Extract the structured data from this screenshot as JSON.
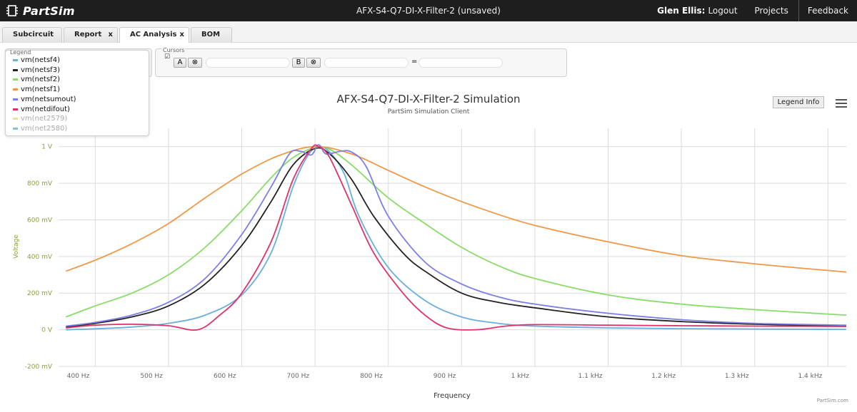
{
  "app": {
    "name": "PartSim",
    "doc_title": "AFX-S4-Q7-DI-X-Filter-2 (unsaved)"
  },
  "header": {
    "user": "Glen Ellis:",
    "logout": "Logout",
    "projects": "Projects",
    "feedback": "Feedback"
  },
  "tabs": [
    {
      "label": "Subcircuit",
      "closable": false,
      "active": false
    },
    {
      "label": "Report",
      "closable": true,
      "active": false
    },
    {
      "label": "AC Analysis",
      "closable": true,
      "active": true
    },
    {
      "label": "BOM",
      "closable": false,
      "active": false
    }
  ],
  "close_glyph": "x",
  "legend_panel": {
    "title": "Legend"
  },
  "cursors": {
    "title": "Cursors",
    "cursor_a": "A",
    "cursor_b": "B",
    "equals": "=",
    "clear_glyph": "⊗",
    "a_value": "",
    "b_value": "",
    "diff_value": ""
  },
  "chart_controls": {
    "legend_info": "Legend Info",
    "menu_icon": "hamburger-icon"
  },
  "credit": "PartSim.com",
  "chart_data": {
    "type": "line",
    "title": "AFX-S4-Q7-DI-X-Filter-2 Simulation",
    "subtitle": "PartSim Simulation Client",
    "xlabel": "Frequency",
    "ylabel": "Voltage",
    "xlim": [
      350,
      1425
    ],
    "ylim": [
      -200,
      1100
    ],
    "x_ticks": [
      {
        "value": 400,
        "label": "400 Hz"
      },
      {
        "value": 500,
        "label": "500 Hz"
      },
      {
        "value": 600,
        "label": "600 Hz"
      },
      {
        "value": 700,
        "label": "700 Hz"
      },
      {
        "value": 800,
        "label": "800 Hz"
      },
      {
        "value": 900,
        "label": "900 Hz"
      },
      {
        "value": 1000,
        "label": "1 kHz"
      },
      {
        "value": 1100,
        "label": "1.1 kHz"
      },
      {
        "value": 1200,
        "label": "1.2 kHz"
      },
      {
        "value": 1300,
        "label": "1.3 kHz"
      },
      {
        "value": 1400,
        "label": "1.4 kHz"
      }
    ],
    "y_ticks": [
      {
        "value": -200,
        "label": "-200 mV"
      },
      {
        "value": 0,
        "label": "0 V"
      },
      {
        "value": 200,
        "label": "200 mV"
      },
      {
        "value": 400,
        "label": "400 mV"
      },
      {
        "value": 600,
        "label": "600 mV"
      },
      {
        "value": 800,
        "label": "800 mV"
      },
      {
        "value": 1000,
        "label": "1 V"
      }
    ],
    "grid": true,
    "legend_placement": "top-left",
    "series": [
      {
        "name": "vm(netsf4)",
        "color": "#6aaee0",
        "points": [
          [
            360,
            0
          ],
          [
            400,
            5
          ],
          [
            450,
            15
          ],
          [
            500,
            35
          ],
          [
            550,
            80
          ],
          [
            600,
            190
          ],
          [
            640,
            420
          ],
          [
            670,
            780
          ],
          [
            690,
            950
          ],
          [
            705,
            1000
          ],
          [
            720,
            970
          ],
          [
            740,
            850
          ],
          [
            760,
            620
          ],
          [
            800,
            340
          ],
          [
            850,
            160
          ],
          [
            900,
            70
          ],
          [
            950,
            35
          ],
          [
            1000,
            20
          ],
          [
            1100,
            10
          ],
          [
            1200,
            6
          ],
          [
            1300,
            4
          ],
          [
            1425,
            2
          ]
        ]
      },
      {
        "name": "vm(netsf3)",
        "color": "#222222",
        "points": [
          [
            360,
            15
          ],
          [
            400,
            35
          ],
          [
            450,
            70
          ],
          [
            500,
            130
          ],
          [
            550,
            250
          ],
          [
            600,
            460
          ],
          [
            640,
            700
          ],
          [
            670,
            900
          ],
          [
            700,
            990
          ],
          [
            720,
            960
          ],
          [
            750,
            820
          ],
          [
            780,
            620
          ],
          [
            820,
            420
          ],
          [
            850,
            320
          ],
          [
            900,
            200
          ],
          [
            950,
            150
          ],
          [
            1000,
            120
          ],
          [
            1100,
            70
          ],
          [
            1200,
            45
          ],
          [
            1300,
            30
          ],
          [
            1425,
            20
          ]
        ]
      },
      {
        "name": "vm(netsf2)",
        "color": "#88dd66",
        "points": [
          [
            360,
            70
          ],
          [
            400,
            130
          ],
          [
            450,
            200
          ],
          [
            500,
            300
          ],
          [
            550,
            450
          ],
          [
            600,
            650
          ],
          [
            640,
            830
          ],
          [
            670,
            940
          ],
          [
            700,
            995
          ],
          [
            720,
            985
          ],
          [
            750,
            900
          ],
          [
            800,
            720
          ],
          [
            850,
            580
          ],
          [
            900,
            450
          ],
          [
            950,
            350
          ],
          [
            1000,
            280
          ],
          [
            1100,
            190
          ],
          [
            1200,
            140
          ],
          [
            1300,
            110
          ],
          [
            1425,
            80
          ]
        ]
      },
      {
        "name": "vm(netsf1)",
        "color": "#f09848",
        "points": [
          [
            360,
            320
          ],
          [
            400,
            380
          ],
          [
            450,
            470
          ],
          [
            500,
            580
          ],
          [
            550,
            720
          ],
          [
            600,
            850
          ],
          [
            650,
            950
          ],
          [
            700,
            1000
          ],
          [
            750,
            960
          ],
          [
            800,
            870
          ],
          [
            850,
            780
          ],
          [
            900,
            700
          ],
          [
            950,
            630
          ],
          [
            1000,
            570
          ],
          [
            1100,
            480
          ],
          [
            1200,
            405
          ],
          [
            1300,
            360
          ],
          [
            1425,
            315
          ]
        ]
      },
      {
        "name": "vm(netsumout)",
        "color": "#7b7fe6",
        "points": [
          [
            360,
            20
          ],
          [
            400,
            40
          ],
          [
            450,
            80
          ],
          [
            500,
            150
          ],
          [
            550,
            280
          ],
          [
            600,
            520
          ],
          [
            640,
            780
          ],
          [
            665,
            960
          ],
          [
            680,
            975
          ],
          [
            695,
            955
          ],
          [
            705,
            1010
          ],
          [
            715,
            960
          ],
          [
            735,
            975
          ],
          [
            750,
            970
          ],
          [
            770,
            890
          ],
          [
            800,
            620
          ],
          [
            850,
            370
          ],
          [
            900,
            250
          ],
          [
            950,
            180
          ],
          [
            1000,
            140
          ],
          [
            1100,
            90
          ],
          [
            1200,
            55
          ],
          [
            1300,
            35
          ],
          [
            1425,
            25
          ]
        ]
      },
      {
        "name": "vm(netdifout)",
        "color": "#e0326a",
        "points": [
          [
            360,
            10
          ],
          [
            400,
            25
          ],
          [
            450,
            30
          ],
          [
            500,
            22
          ],
          [
            540,
            0
          ],
          [
            570,
            80
          ],
          [
            600,
            200
          ],
          [
            640,
            480
          ],
          [
            670,
            820
          ],
          [
            695,
            990
          ],
          [
            705,
            1000
          ],
          [
            720,
            940
          ],
          [
            750,
            680
          ],
          [
            780,
            420
          ],
          [
            820,
            200
          ],
          [
            850,
            80
          ],
          [
            880,
            10
          ],
          [
            920,
            0
          ],
          [
            960,
            20
          ],
          [
            1000,
            28
          ],
          [
            1100,
            25
          ],
          [
            1200,
            22
          ],
          [
            1300,
            20
          ],
          [
            1425,
            18
          ]
        ]
      },
      {
        "name": "vm(net2579)",
        "color": "#efe09a",
        "points": []
      },
      {
        "name": "vm(net2580)",
        "color": "#88c4cc",
        "points": []
      }
    ]
  }
}
